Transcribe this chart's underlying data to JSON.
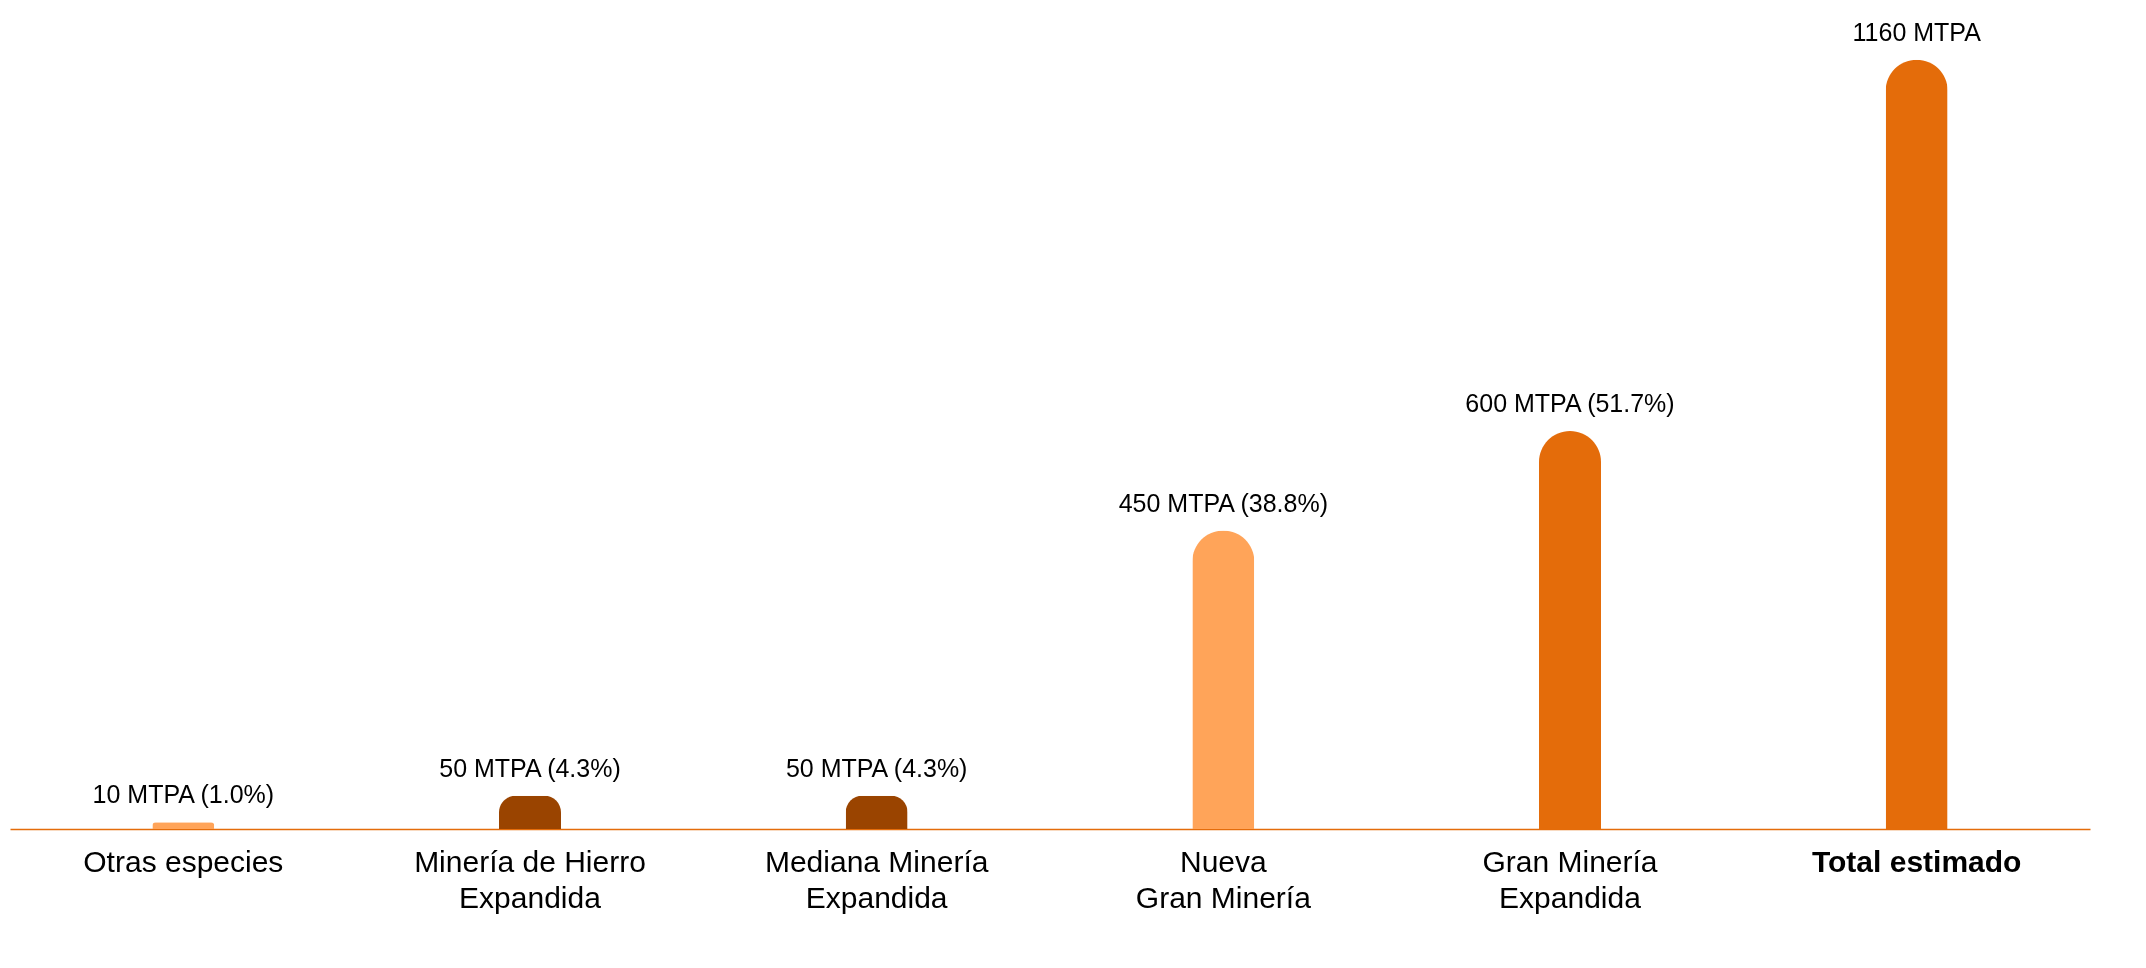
{
  "chart_data": {
    "type": "bar",
    "categories": [
      "Otras  especies",
      "Minería de Hierro\nExpandida",
      "Mediana Minería\nExpandida",
      "Nueva\nGran Minería",
      "Gran Minería\nExpandida",
      "Total estimado"
    ],
    "values": [
      10,
      50,
      50,
      450,
      600,
      1160
    ],
    "colors": [
      "#ffa459",
      "#9a4400",
      "#9a4400",
      "#ffa459",
      "#e46c0a",
      "#e46c0a"
    ],
    "value_labels": [
      "10 MTPA (1.0%)",
      "50 MTPA (4.3%)",
      "50 MTPA (4.3%)",
      "450 MTPA (38.8%)",
      "600 MTPA (51.7%)",
      "1160 MTPA"
    ],
    "grid": false,
    "legend": false
  }
}
